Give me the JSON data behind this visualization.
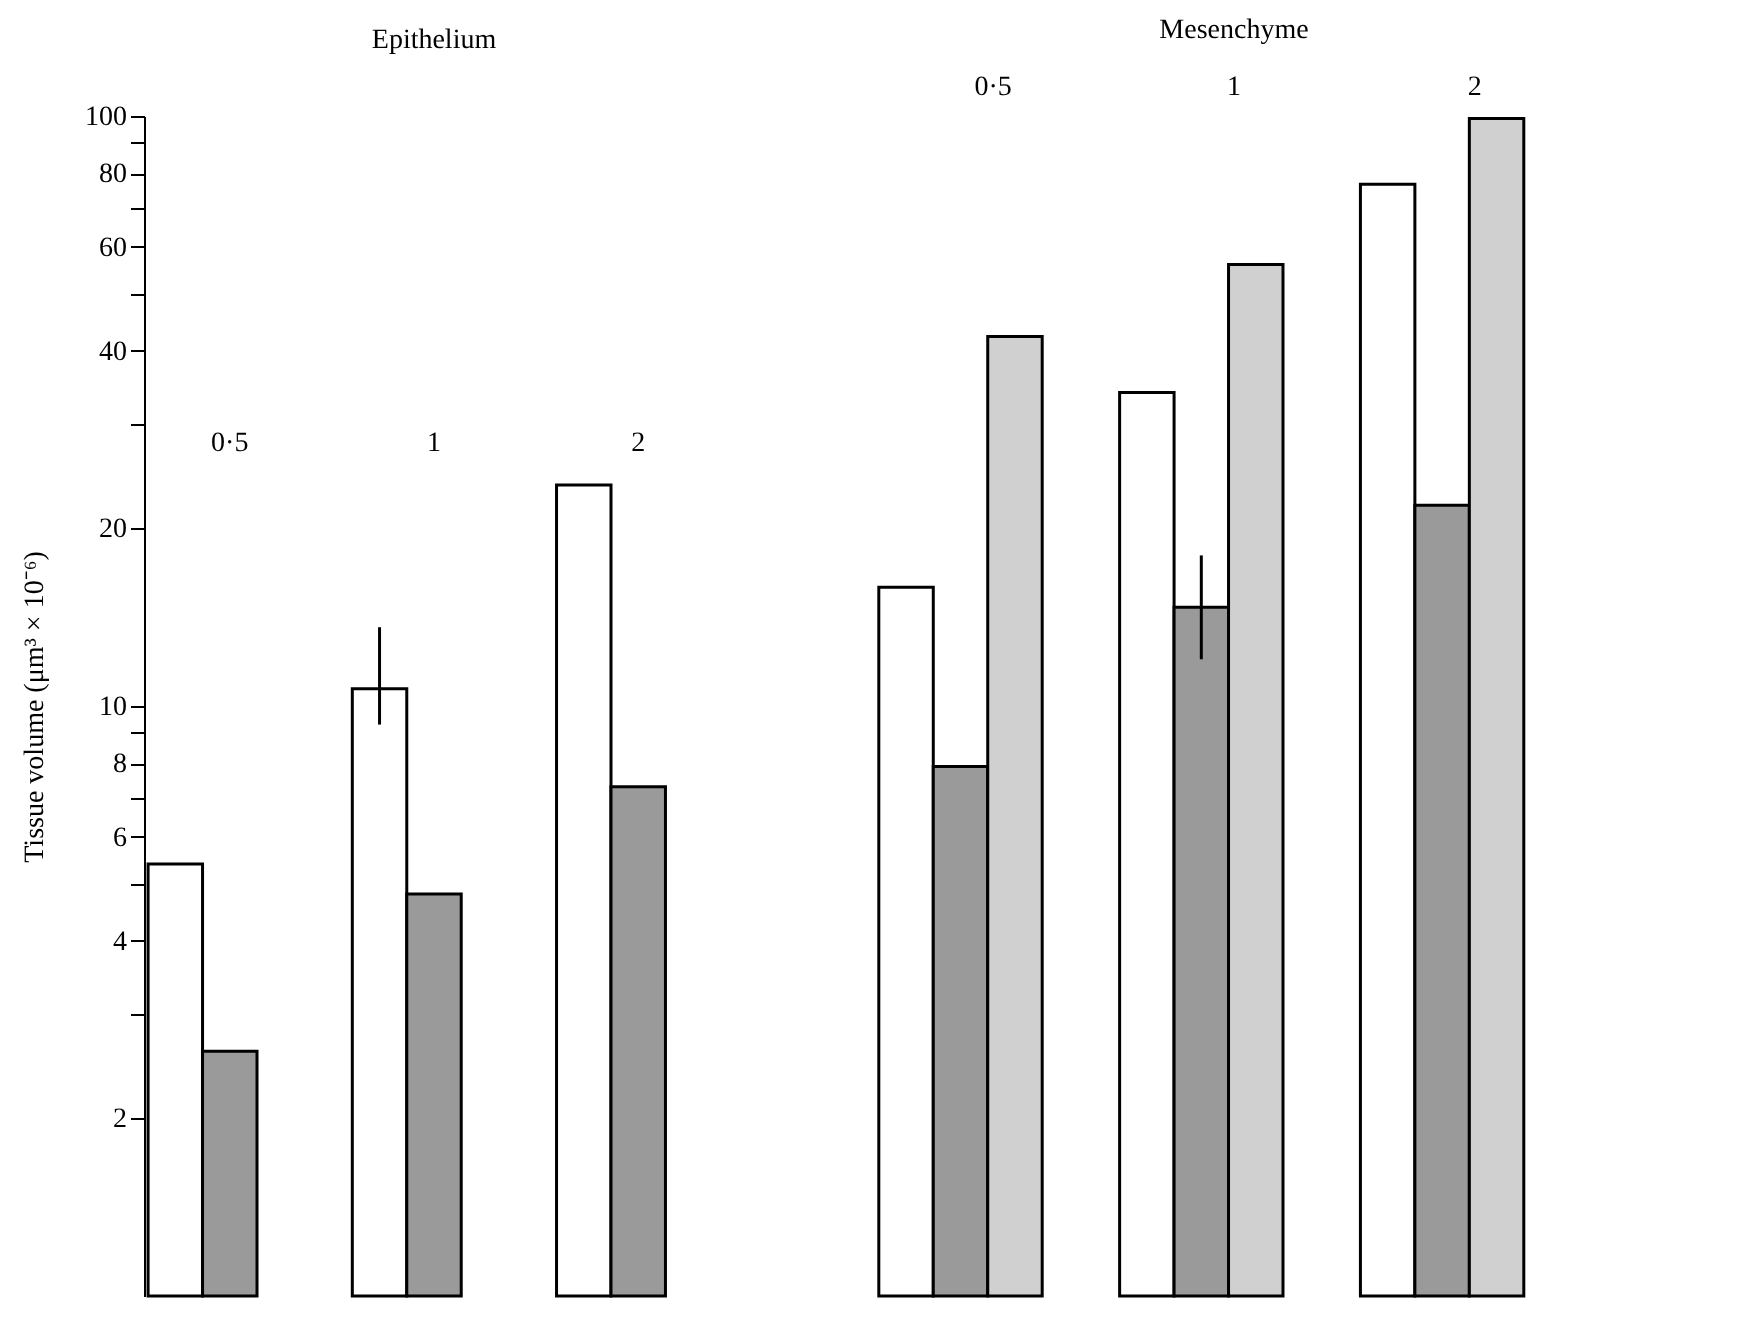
{
  "chart_data": [
    {
      "type": "bar",
      "title": "Epithelium",
      "ylabel": "Tissue volume (μm³ × 10⁻⁶)",
      "categories": [
        "0·5",
        "1",
        "2"
      ],
      "log": true,
      "ylim": [
        1,
        100
      ],
      "yticks": [
        2,
        {
          "value": 3,
          "label": null
        },
        4,
        {
          "value": 5,
          "label": null
        },
        6,
        {
          "value": 7,
          "label": null
        },
        8,
        {
          "value": 9,
          "label": null
        },
        10,
        20,
        {
          "value": 30,
          "label": null
        },
        40,
        {
          "value": 50,
          "label": null
        },
        60,
        {
          "value": 70,
          "label": null
        },
        80,
        {
          "value": 90,
          "label": null
        },
        100
      ],
      "series": [
        {
          "color": "#ffffff",
          "values": [
            5.4,
            10.7,
            23.7
          ],
          "errors": [
            null,
            [
              9.3,
              13.6
            ],
            null
          ]
        },
        {
          "color": "#9a9a9a",
          "values": [
            2.6,
            4.8,
            7.3
          ]
        }
      ]
    },
    {
      "type": "bar",
      "title": "Mesenchyme",
      "categories": [
        "0·5",
        "1",
        "2"
      ],
      "log": true,
      "ylim": [
        1,
        100
      ],
      "tick_labels": "x",
      "series": [
        {
          "color": "#ffffff",
          "values": [
            15.9,
            34.0,
            76.6
          ]
        },
        {
          "color": "#9a9a9a",
          "values": [
            7.9,
            14.7,
            21.9
          ],
          "errors": [
            null,
            [
              12.0,
              18.0
            ],
            null
          ]
        },
        {
          "color": "#d0d0d0",
          "values": [
            42.3,
            56.0,
            99
          ]
        }
      ]
    }
  ]
}
